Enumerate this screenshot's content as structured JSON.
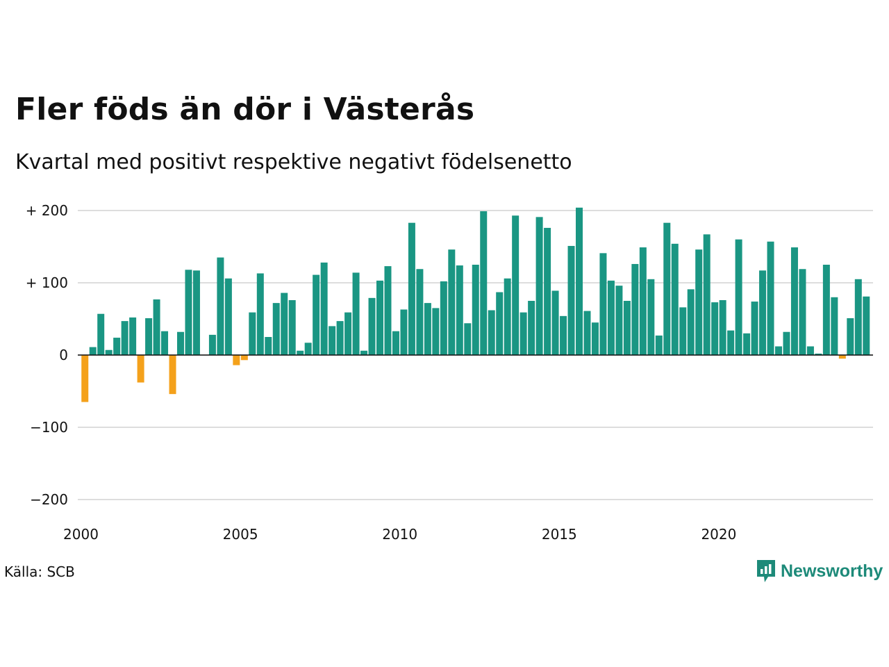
{
  "title": "Fler föds än dör i Västerås",
  "subtitle": "Kvartal med positivt respektive negativt födelsenetto",
  "source": "Källa: SCB",
  "brand": "Newsworthy",
  "colors": {
    "positive": "#1a9683",
    "negative": "#f4a11b",
    "brand": "#1d8a79",
    "grid": "#dddddd"
  },
  "chart_data": {
    "type": "bar",
    "start_year": 2000,
    "interval": "quarter",
    "ylim": [
      -200,
      205
    ],
    "y_ticks": [
      200,
      100,
      0,
      -100,
      -200
    ],
    "y_tick_labels": [
      "+ 200",
      "+ 100",
      "0",
      "−100",
      "−200"
    ],
    "x_tick_labels": [
      "2000",
      "2005",
      "2010",
      "2015",
      "2020"
    ],
    "grid": true,
    "values": [
      -65,
      11,
      57,
      7,
      24,
      47,
      52,
      -38,
      51,
      77,
      33,
      -54,
      32,
      118,
      117,
      0,
      28,
      135,
      106,
      -14,
      -7,
      59,
      113,
      25,
      72,
      86,
      76,
      6,
      17,
      111,
      128,
      40,
      47,
      59,
      114,
      6,
      79,
      103,
      123,
      33,
      63,
      183,
      119,
      72,
      65,
      102,
      146,
      124,
      44,
      125,
      199,
      62,
      87,
      106,
      193,
      59,
      75,
      191,
      176,
      89,
      54,
      151,
      204,
      61,
      45,
      141,
      103,
      96,
      75,
      126,
      149,
      105,
      27,
      183,
      154,
      66,
      91,
      146,
      167,
      73,
      76,
      34,
      160,
      30,
      74,
      117,
      157,
      12,
      32,
      149,
      119,
      12,
      2,
      125,
      80,
      -5,
      51,
      105,
      81
    ]
  }
}
